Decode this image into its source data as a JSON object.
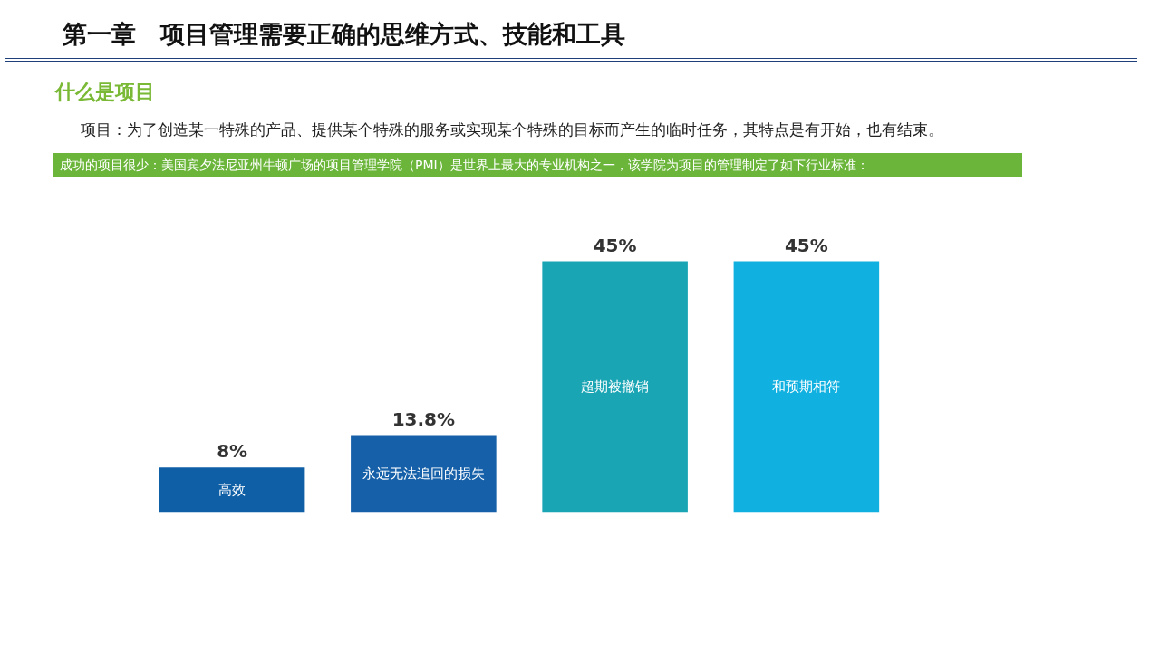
{
  "chart_data": {
    "type": "bar",
    "title": "第一章　项目管理需要正确的思维方式、技能和工具",
    "subtitle": "什么是项目",
    "annotations": [
      "项目：为了创造某一特殊的产品、提供某个特殊的服务或实现某个特殊的目标而产生的临时任务，其特点是有开始，也有结束。",
      "成功的项目很少：美国宾夕法尼亚州牛顿广场的项目管理学院（PMI）是世界上最大的专业机构之一，该学院为项目的管理制定了如下行业标准："
    ],
    "categories": [
      "高效",
      "永远无法追回的损失",
      "超期被撤销",
      "和预期相符"
    ],
    "values": [
      8,
      13.8,
      45,
      45
    ],
    "colors": [
      "#0f5fa6",
      "#1560a8",
      "#1aa5b5",
      "#10b0e0"
    ],
    "value_labels": [
      "8%",
      "13.8%",
      "45%",
      "45%"
    ]
  }
}
